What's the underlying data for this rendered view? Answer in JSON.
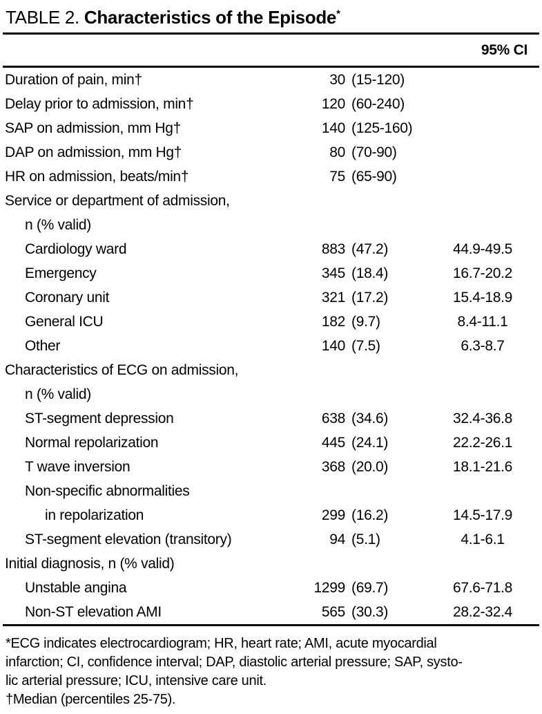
{
  "title": {
    "prefix": "TABLE 2. ",
    "main": "Characteristics of the Episode",
    "superscript": "*"
  },
  "header": {
    "ci_label": "95% CI"
  },
  "table": {
    "rows": [
      {
        "label": "Duration of pain, min†",
        "indent": 0,
        "n": "30",
        "p": "(15-120)",
        "ci": ""
      },
      {
        "label": "Delay prior to admission, min†",
        "indent": 0,
        "n": "120",
        "p": "(60-240)",
        "ci": ""
      },
      {
        "label": "SAP on admission, mm Hg†",
        "indent": 0,
        "n": "140",
        "p": "(125-160)",
        "ci": ""
      },
      {
        "label": "DAP on admission, mm Hg†",
        "indent": 0,
        "n": "80",
        "p": "(70-90)",
        "ci": ""
      },
      {
        "label": "HR on admission, beats/min†",
        "indent": 0,
        "n": "75",
        "p": "(65-90)",
        "ci": ""
      },
      {
        "label": "Service or department of admission,",
        "indent": 0,
        "n": "",
        "p": "",
        "ci": ""
      },
      {
        "label": "n (% valid)",
        "indent": 1,
        "n": "",
        "p": "",
        "ci": ""
      },
      {
        "label": "Cardiology ward",
        "indent": 1,
        "n": "883",
        "p": "(47.2)",
        "ci": "44.9-49.5"
      },
      {
        "label": "Emergency",
        "indent": 1,
        "n": "345",
        "p": "(18.4)",
        "ci": "16.7-20.2"
      },
      {
        "label": "Coronary unit",
        "indent": 1,
        "n": "321",
        "p": "(17.2)",
        "ci": "15.4-18.9"
      },
      {
        "label": "General ICU",
        "indent": 1,
        "n": "182",
        "p": "(9.7)",
        "ci": "8.4-11.1"
      },
      {
        "label": "Other",
        "indent": 1,
        "n": "140",
        "p": "(7.5)",
        "ci": "6.3-8.7"
      },
      {
        "label": "Characteristics of ECG on admission,",
        "indent": 0,
        "n": "",
        "p": "",
        "ci": ""
      },
      {
        "label": "n (% valid)",
        "indent": 1,
        "n": "",
        "p": "",
        "ci": ""
      },
      {
        "label": "ST-segment depression",
        "indent": 1,
        "n": "638",
        "p": "(34.6)",
        "ci": "32.4-36.8"
      },
      {
        "label": "Normal repolarization",
        "indent": 1,
        "n": "445",
        "p": "(24.1)",
        "ci": "22.2-26.1"
      },
      {
        "label": "T wave inversion",
        "indent": 1,
        "n": "368",
        "p": "(20.0)",
        "ci": "18.1-21.6"
      },
      {
        "label": "Non-specific abnormalities",
        "indent": 1,
        "n": "",
        "p": "",
        "ci": ""
      },
      {
        "label": "in repolarization",
        "indent": 2,
        "n": "299",
        "p": "(16.2)",
        "ci": "14.5-17.9"
      },
      {
        "label": "ST-segment elevation (transitory)",
        "indent": 1,
        "n": "94",
        "p": "(5.1)",
        "ci": "4.1-6.1"
      },
      {
        "label": "Initial diagnosis, n (% valid)",
        "indent": 0,
        "n": "",
        "p": "",
        "ci": ""
      },
      {
        "label": "Unstable angina",
        "indent": 1,
        "n": "1299",
        "p": "(69.7)",
        "ci": "67.6-71.8"
      },
      {
        "label": "Non-ST elevation AMI",
        "indent": 1,
        "n": "565",
        "p": "(30.3)",
        "ci": "28.2-32.4"
      }
    ]
  },
  "footnotes": {
    "lines": [
      "*ECG indicates electrocardiogram; HR, heart rate; AMI, acute myocardial",
      "infarction; CI, confidence interval; DAP, diastolic arterial pressure; SAP, systo-",
      "lic arterial pressure; ICU, intensive care unit.",
      "†Median (percentiles 25-75)."
    ]
  }
}
